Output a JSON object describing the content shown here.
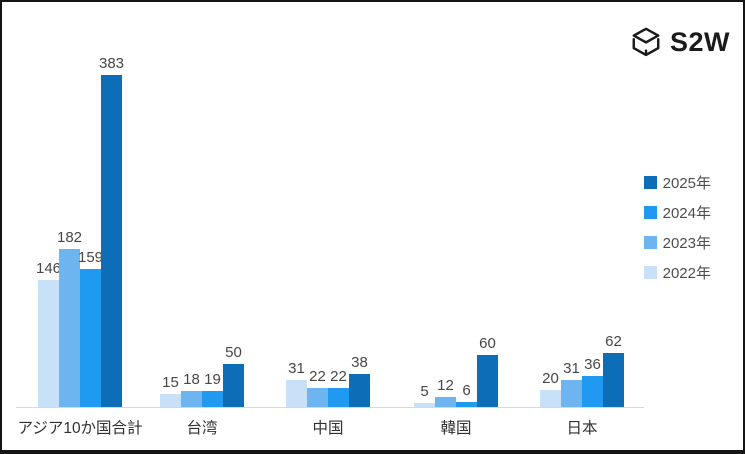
{
  "logo": {
    "text": "S2W",
    "icon": "cube-wireframe-icon"
  },
  "chart_data": {
    "type": "bar",
    "title": "",
    "xlabel": "",
    "ylabel": "",
    "grid": false,
    "value_labels": true,
    "ylim": [
      0,
      400
    ],
    "legend_position": "right",
    "legend_order": [
      "2025年",
      "2024年",
      "2023年",
      "2022年"
    ],
    "categories": [
      "アジア10か国合計",
      "台湾",
      "中国",
      "韓国",
      "日本"
    ],
    "series": [
      {
        "name": "2022年",
        "color": "#c8e1f8",
        "values": [
          146,
          15,
          31,
          5,
          20
        ]
      },
      {
        "name": "2023年",
        "color": "#6cb5f1",
        "values": [
          182,
          18,
          22,
          12,
          31
        ]
      },
      {
        "name": "2024年",
        "color": "#1f9af0",
        "values": [
          159,
          19,
          22,
          6,
          36
        ]
      },
      {
        "name": "2025年",
        "color": "#0d6db6",
        "values": [
          383,
          50,
          38,
          60,
          62
        ]
      }
    ]
  },
  "colors": {
    "axis_line": "#d8d8d8",
    "value_label_text": "#474747",
    "category_label_text": "#303030",
    "legend_text": "#4d4d4d",
    "frame_border": "#141414",
    "logo_ink": "#1b1b1b"
  }
}
